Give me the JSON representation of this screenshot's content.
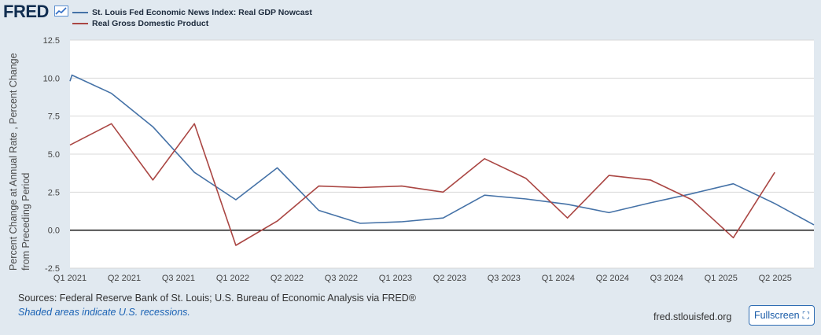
{
  "brand": {
    "logo_text": "FRED"
  },
  "colors": {
    "nowcast": "#4572a7",
    "gdp": "#aa4643",
    "background": "#e1e9f0",
    "plot_bg": "#ffffff",
    "grid": "#d8d8d8",
    "zero_line": "#000000"
  },
  "chart_data": {
    "type": "line",
    "title": "",
    "ylabel": "Percent Change at Annual Rate , Percent Change from Preceding Period",
    "xlabel": "",
    "ylim": [
      -2.5,
      12.5
    ],
    "xlim": [
      0,
      19.2
    ],
    "yticks": [
      -2.5,
      0.0,
      2.5,
      5.0,
      7.5,
      10.0,
      12.5
    ],
    "ytick_labels": [
      "-2.5",
      "0.0",
      "2.5",
      "5.0",
      "7.5",
      "10.0",
      "12.5"
    ],
    "xticks": [
      0,
      1.4,
      2.8,
      4.2,
      5.6,
      7.0,
      8.4,
      9.8,
      11.2,
      12.6,
      14.0,
      15.4,
      16.8,
      18.2
    ],
    "xtick_labels": [
      "Q1 2021",
      "Q2 2021",
      "Q3 2021",
      "Q1 2022",
      "Q2 2022",
      "Q3 2022",
      "Q1 2023",
      "Q2 2023",
      "Q3 2023",
      "Q1 2024",
      "Q2 2024",
      "Q3 2024",
      "Q1 2025",
      "Q2 2025"
    ],
    "series": [
      {
        "name": "St. Louis Fed Economic News Index: Real GDP Nowcast",
        "color": "#4572a7",
        "x": [
          0,
          0.05,
          1.07,
          2.14,
          3.21,
          4.28,
          5.35,
          6.42,
          7.49,
          8.56,
          9.63,
          10.7,
          11.77,
          12.84,
          13.91,
          14.98,
          16.05,
          17.12,
          18.19,
          19.2
        ],
        "y": [
          9.8,
          10.2,
          9.0,
          6.8,
          3.8,
          2.0,
          4.1,
          1.3,
          0.45,
          0.55,
          0.8,
          2.3,
          2.05,
          1.7,
          1.15,
          1.8,
          2.4,
          3.05,
          1.75,
          0.35
        ]
      },
      {
        "name": "Real Gross Domestic Product",
        "color": "#aa4643",
        "x": [
          0,
          1.07,
          2.14,
          3.21,
          4.28,
          5.35,
          6.42,
          7.49,
          8.56,
          9.63,
          10.7,
          11.77,
          12.84,
          13.91,
          14.98,
          16.05,
          17.12,
          18.19
        ],
        "y": [
          5.6,
          7.0,
          3.3,
          7.0,
          -1.0,
          0.6,
          2.9,
          2.8,
          2.9,
          2.5,
          4.7,
          3.4,
          0.8,
          3.6,
          3.3,
          2.0,
          -0.5,
          3.8
        ]
      }
    ]
  },
  "footer": {
    "sources": "Sources: Federal Reserve Bank of St. Louis; U.S. Bureau of Economic Analysis via FRED®",
    "shaded_note": "Shaded areas indicate U.S. recessions.",
    "site": "fred.stlouisfed.org",
    "fullscreen_label": "Fullscreen"
  }
}
